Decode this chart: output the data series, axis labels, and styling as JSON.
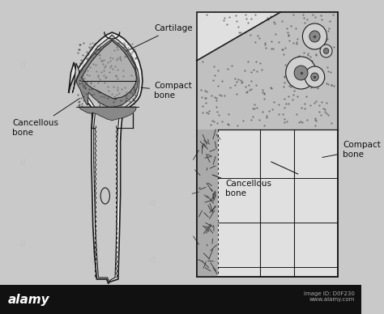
{
  "bg_color": "#c9c9c9",
  "footer_color": "#111111",
  "line_color": "#1a1a1a",
  "text_color": "#111111",
  "labels": {
    "cartilage": "Cartilage",
    "compact_bone_1": "Compact\nbone",
    "cancellous_bone_1": "Cancellous\nbone",
    "cancellous_bone_2": "Cancellous\nbone",
    "compact_bone_2": "Compact\nbone"
  },
  "footer_text_left": "alamy",
  "footer_text_right": "Image ID: D0F230\nwww.alamy.com",
  "label_fontsize": 7.5,
  "footer_fontsize": 7,
  "watermark_color": "#aaaaaa"
}
